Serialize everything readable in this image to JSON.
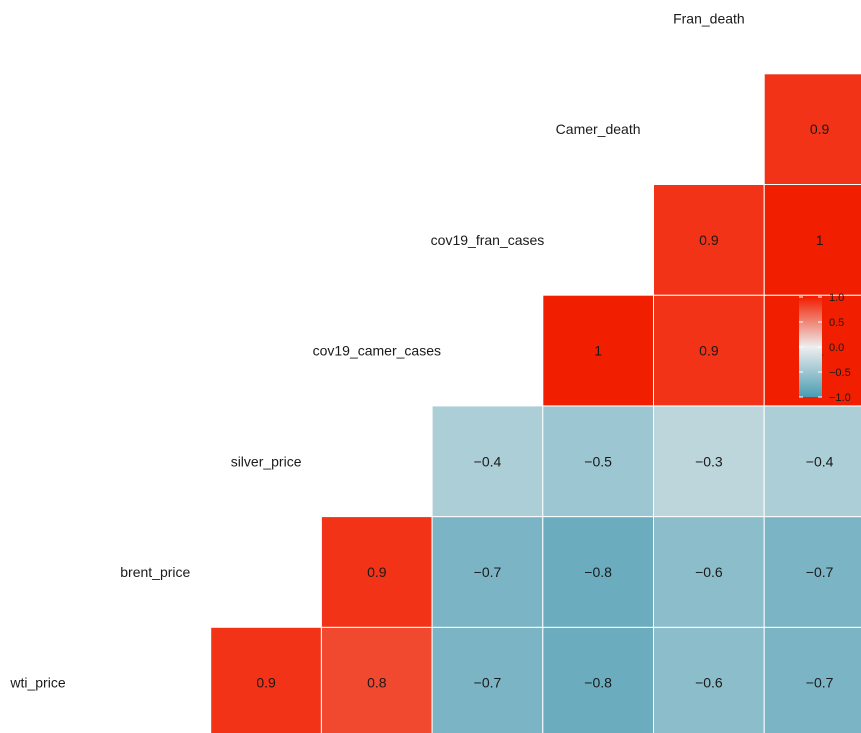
{
  "chart_data": {
    "type": "heatmap",
    "title": "",
    "xlabel": "",
    "ylabel": "",
    "column_labels": [
      "wti_price",
      "brent_price",
      "silver_price",
      "cov19_camer_cases",
      "cov19_fran_cases",
      "Camer_death",
      "Fran_death"
    ],
    "row_labels": [
      "wti_price",
      "brent_price",
      "silver_price",
      "cov19_camer_cases",
      "cov19_fran_cases",
      "Camer_death",
      "Fran_death"
    ],
    "cells": [
      {
        "row": "wti_price",
        "col": "brent_price",
        "value": 0.9,
        "label": "0.9"
      },
      {
        "row": "wti_price",
        "col": "silver_price",
        "value": 0.8,
        "label": "0.8"
      },
      {
        "row": "wti_price",
        "col": "cov19_camer_cases",
        "value": -0.7,
        "label": "−0.7"
      },
      {
        "row": "wti_price",
        "col": "cov19_fran_cases",
        "value": -0.8,
        "label": "−0.8"
      },
      {
        "row": "wti_price",
        "col": "Camer_death",
        "value": -0.6,
        "label": "−0.6"
      },
      {
        "row": "wti_price",
        "col": "Fran_death",
        "value": -0.7,
        "label": "−0.7"
      },
      {
        "row": "brent_price",
        "col": "silver_price",
        "value": 0.9,
        "label": "0.9"
      },
      {
        "row": "brent_price",
        "col": "cov19_camer_cases",
        "value": -0.7,
        "label": "−0.7"
      },
      {
        "row": "brent_price",
        "col": "cov19_fran_cases",
        "value": -0.8,
        "label": "−0.8"
      },
      {
        "row": "brent_price",
        "col": "Camer_death",
        "value": -0.6,
        "label": "−0.6"
      },
      {
        "row": "brent_price",
        "col": "Fran_death",
        "value": -0.7,
        "label": "−0.7"
      },
      {
        "row": "silver_price",
        "col": "cov19_camer_cases",
        "value": -0.4,
        "label": "−0.4"
      },
      {
        "row": "silver_price",
        "col": "cov19_fran_cases",
        "value": -0.5,
        "label": "−0.5"
      },
      {
        "row": "silver_price",
        "col": "Camer_death",
        "value": -0.3,
        "label": "−0.3"
      },
      {
        "row": "silver_price",
        "col": "Fran_death",
        "value": -0.4,
        "label": "−0.4"
      },
      {
        "row": "cov19_camer_cases",
        "col": "cov19_fran_cases",
        "value": 1.0,
        "label": "1"
      },
      {
        "row": "cov19_camer_cases",
        "col": "Camer_death",
        "value": 0.9,
        "label": "0.9"
      },
      {
        "row": "cov19_camer_cases",
        "col": "Fran_death",
        "value": 1.0,
        "label": "1"
      },
      {
        "row": "cov19_fran_cases",
        "col": "Camer_death",
        "value": 0.9,
        "label": "0.9"
      },
      {
        "row": "cov19_fran_cases",
        "col": "Fran_death",
        "value": 1.0,
        "label": "1"
      },
      {
        "row": "Camer_death",
        "col": "Fran_death",
        "value": 0.9,
        "label": "0.9"
      }
    ],
    "color_scale": {
      "min": -1.0,
      "max": 1.0,
      "low_color": "#4a9db3",
      "mid_color": "#eeeeee",
      "high_color": "#f21e00"
    },
    "legend": {
      "position": "right",
      "tick_values": [
        1.0,
        0.5,
        0.0,
        -0.5,
        -1.0
      ],
      "tick_labels": [
        "1.0",
        "0.5",
        "0.0",
        "−0.5",
        "−1.0"
      ]
    },
    "grid": false
  }
}
